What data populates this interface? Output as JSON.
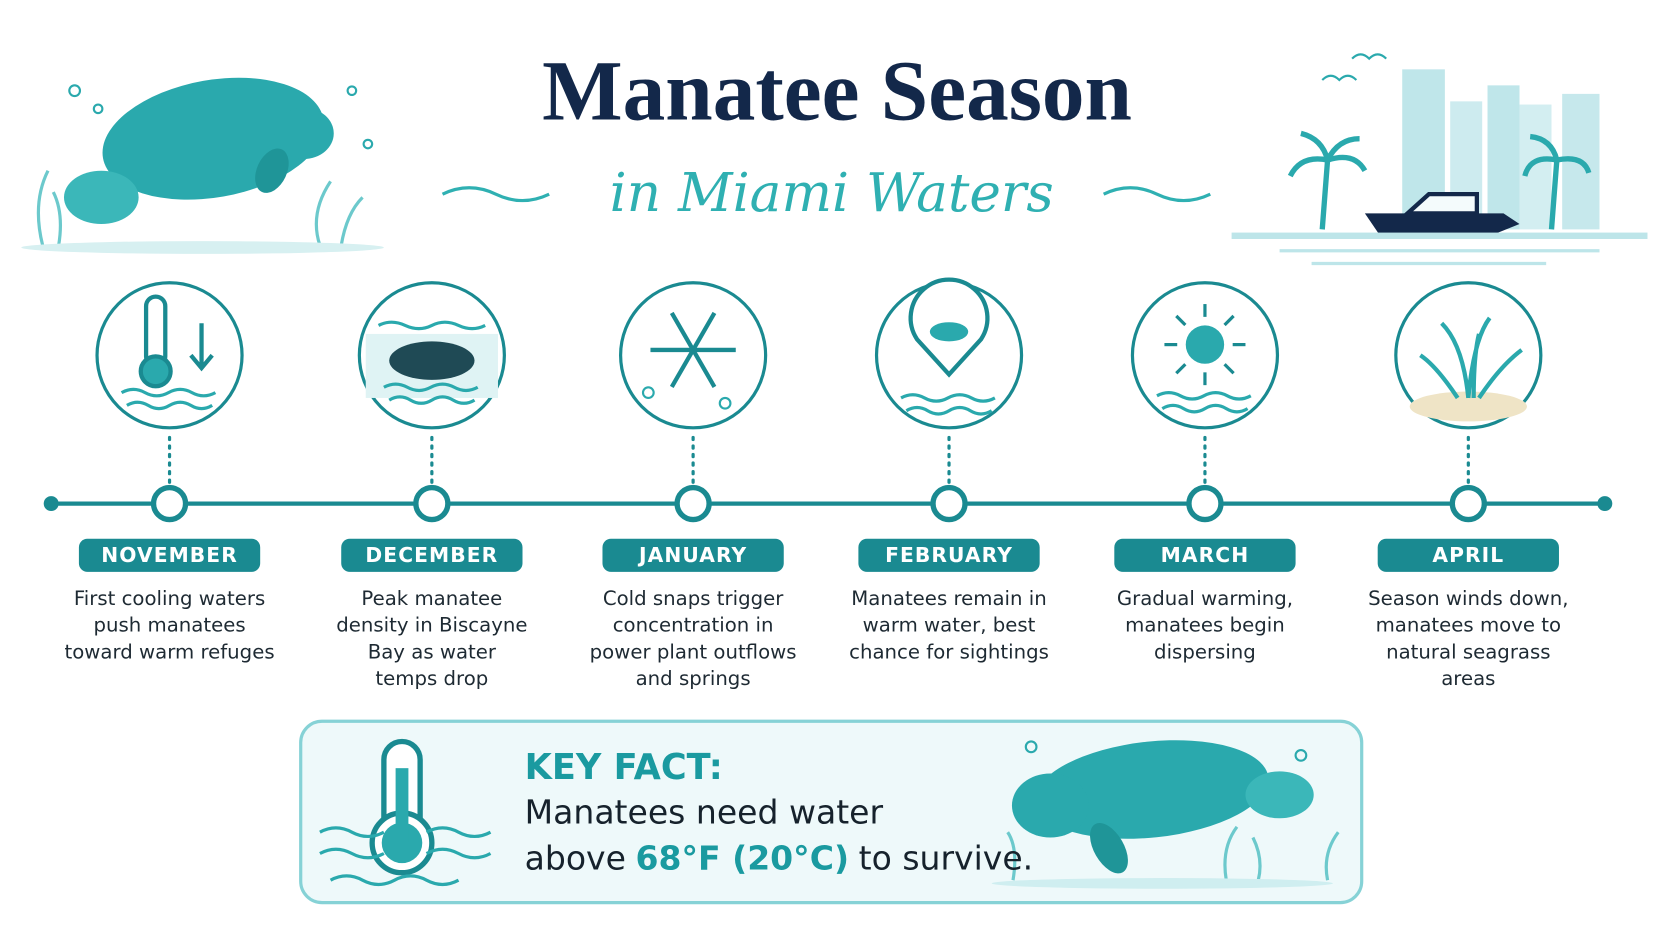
{
  "header": {
    "title": "Manatee Season",
    "subtitle": "in Miami Waters"
  },
  "timeline": [
    {
      "month": "NOVEMBER",
      "description": [
        "First cooling waters",
        "push manatees",
        "toward warm refuges"
      ]
    },
    {
      "month": "DECEMBER",
      "description": [
        "Peak manatee",
        "density in Biscayne",
        "Bay as water",
        "temps drop"
      ]
    },
    {
      "month": "JANUARY",
      "description": [
        "Cold snaps trigger",
        "concentration in",
        "power plant outflows",
        "and springs"
      ]
    },
    {
      "month": "FEBRUARY",
      "description": [
        "Manatees remain in",
        "warm water, best",
        "chance for sightings"
      ]
    },
    {
      "month": "MARCH",
      "description": [
        "Gradual warming,",
        "manatees begin",
        "dispersing"
      ]
    },
    {
      "month": "APRIL",
      "description": [
        "Season winds down,",
        "manatees move to",
        "natural seagrass",
        "areas"
      ]
    }
  ],
  "key_fact": {
    "label": "KEY FACT:",
    "line1": "Manatees need water",
    "line2": [
      "above",
      "68°F (20°C)",
      "to survive."
    ]
  }
}
